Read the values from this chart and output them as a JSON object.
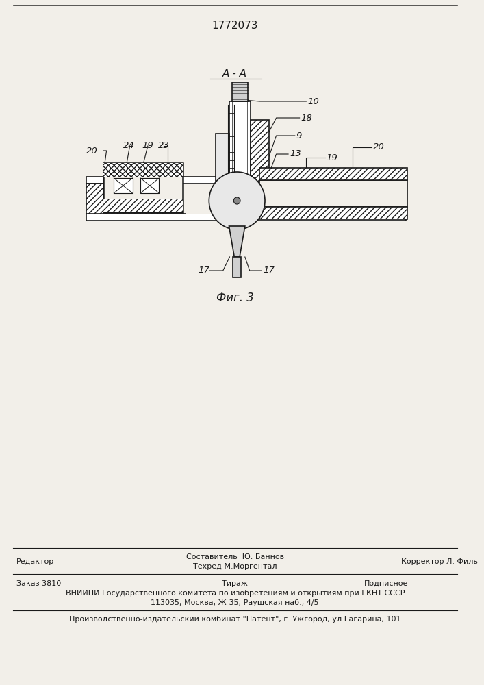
{
  "patent_number": "1772073",
  "fig_label": "Фиг. 3",
  "section_label": "А - А",
  "bg_color": "#f2efe9",
  "line_color": "#1a1a1a",
  "hatch_color": "#1a1a1a",
  "footer_line1_left": "Редактор",
  "footer_line1_center1": "Составитель  Ю. Баннов",
  "footer_line1_center2": "Техред М.Моргентал",
  "footer_line1_right": "Корректор Л. Филь",
  "footer_line2_left": "Заказ 3810",
  "footer_line2_center": "Тираж",
  "footer_line2_right": "Подписное",
  "footer_line3": "ВНИИПИ Государственного комитета по изобретениям и открытиям при ГКНТ СССР",
  "footer_line4": "113035, Москва, Ж-35, Раушская наб., 4/5",
  "footer_line5": "Производственно-издательский комбинат \"Патент\", г. Ужгород, ул.Гагарина, 101"
}
